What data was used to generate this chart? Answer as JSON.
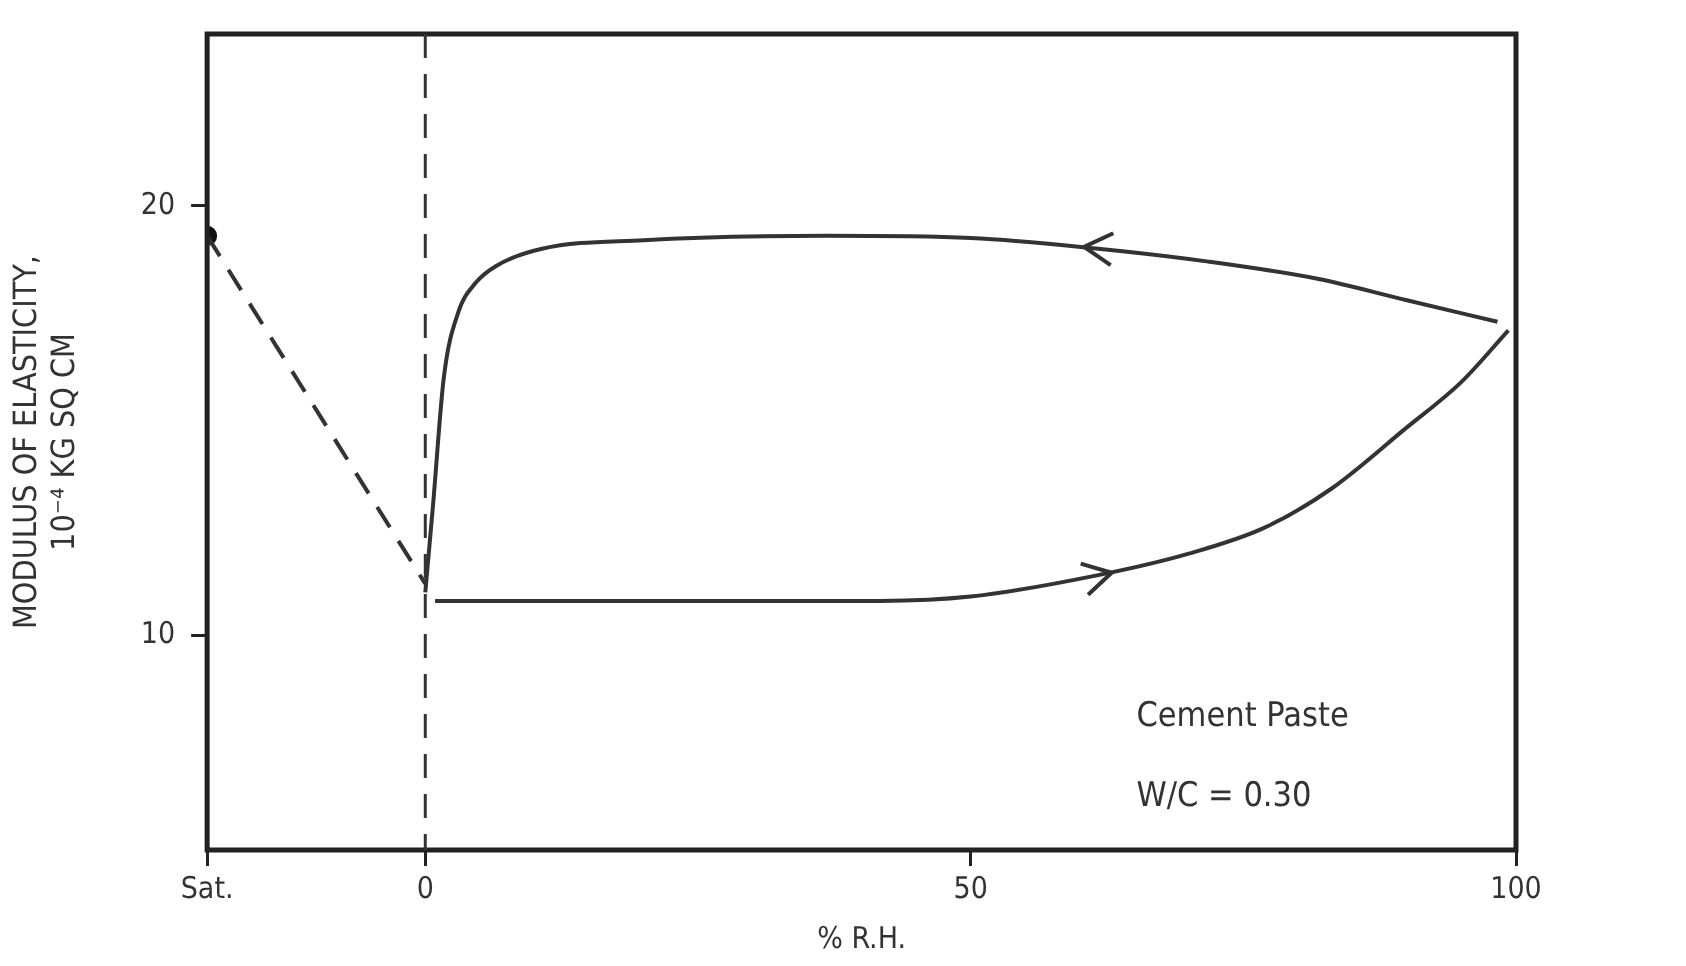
{
  "chart_data": {
    "type": "line",
    "xlabel": "% R.H.",
    "ylabel": [
      "MODULUS OF ELASTICITY,",
      "10⁻⁴ KG SQ CM"
    ],
    "xlim": [
      -20,
      100
    ],
    "ylim": [
      5,
      24
    ],
    "xticks": [
      {
        "value": -20,
        "label": "Sat."
      },
      0,
      50,
      100
    ],
    "yticks": [
      10,
      20
    ],
    "grid": false,
    "legend": false,
    "marker": "none",
    "ref_lines": [
      {
        "axis": "x",
        "value": 0,
        "color": "#333333",
        "line_style": "dashed"
      }
    ],
    "annotations": [
      "Cement Paste",
      "W/C = 0.30"
    ],
    "series": [
      {
        "color": "#333333",
        "line_style": "dashed",
        "x": [
          -20,
          0
        ],
        "values": [
          19.3,
          11.2
        ]
      },
      {
        "type": "scatter",
        "color": "#111111",
        "marker": "circle",
        "x": [
          -20
        ],
        "values": [
          19.3
        ]
      },
      {
        "color": "#333333",
        "line_style": "solid",
        "x": [
          98.3,
          90,
          81.8,
          71.8,
          61.7,
          50,
          36.7,
          20,
          10.7,
          6.5,
          4.6,
          3,
          1.7,
          0.7,
          0
        ],
        "values": [
          17.3,
          17.8,
          18.3,
          18.7,
          19.0,
          19.25,
          19.3,
          19.2,
          19.0,
          18.6,
          18.2,
          17.5,
          16.0,
          13.0,
          11.0
        ]
      },
      {
        "color": "#333333",
        "line_style": "solid",
        "x": [
          0.9,
          20,
          41.7,
          50,
          61.7,
          70,
          76.9,
          83,
          89.8,
          95,
          99.3
        ],
        "values": [
          10.8,
          10.8,
          10.8,
          10.9,
          11.4,
          11.9,
          12.5,
          13.4,
          14.8,
          15.9,
          17.1
        ]
      }
    ]
  }
}
